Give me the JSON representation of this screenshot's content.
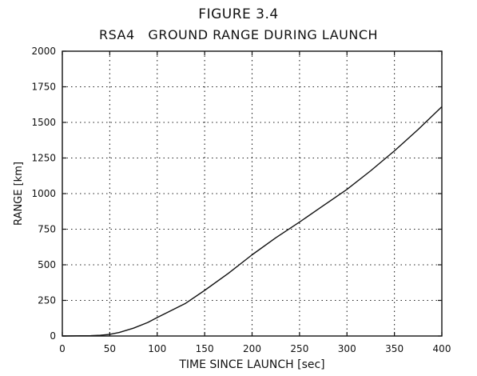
{
  "figure": {
    "title": "FIGURE 3.4",
    "subtitle": "RSA4   GROUND RANGE DURING LAUNCH"
  },
  "chart_data": {
    "type": "line",
    "title": "RSA4   GROUND RANGE DURING LAUNCH",
    "xlabel": "TIME SINCE LAUNCH [sec]",
    "ylabel": "RANGE [km]",
    "xlim": [
      0,
      400
    ],
    "ylim": [
      0,
      2000
    ],
    "x_ticks": [
      0,
      50,
      100,
      150,
      200,
      250,
      300,
      350,
      400
    ],
    "y_ticks": [
      0,
      250,
      500,
      750,
      1000,
      1250,
      1500,
      1750,
      2000
    ],
    "grid": true,
    "grid_style": "dotted",
    "legend": "none",
    "series": [
      {
        "color": "#111111",
        "x": [
          0,
          30,
          40,
          50,
          60,
          75,
          90,
          100,
          115,
          130,
          150,
          175,
          200,
          225,
          250,
          275,
          300,
          325,
          350,
          375,
          400
        ],
        "y": [
          0,
          2,
          5,
          12,
          25,
          55,
          95,
          130,
          180,
          230,
          320,
          440,
          570,
          690,
          800,
          915,
          1030,
          1160,
          1300,
          1450,
          1610
        ]
      }
    ]
  }
}
